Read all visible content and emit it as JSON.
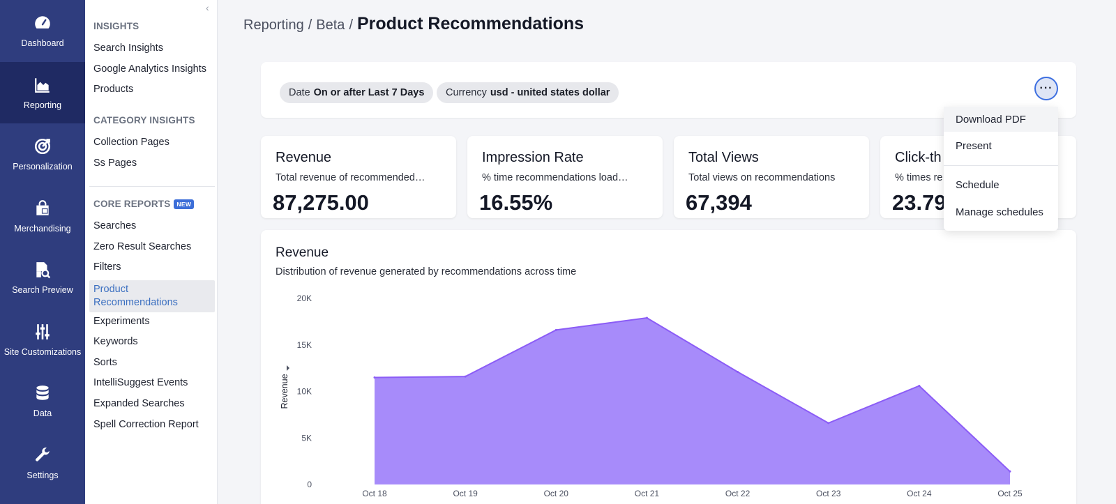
{
  "rail": [
    {
      "label": "Dashboard",
      "icon": "speedometer-icon",
      "active": false
    },
    {
      "label": "Reporting",
      "icon": "area-chart-icon",
      "active": true
    },
    {
      "label": "Personalization",
      "icon": "target-icon",
      "active": false
    },
    {
      "label": "Merchandising",
      "icon": "shopping-bag-icon",
      "active": false
    },
    {
      "label": "Search Preview",
      "icon": "document-search-icon",
      "active": false
    },
    {
      "label": "Site Customizations",
      "icon": "sliders-icon",
      "active": false
    },
    {
      "label": "Data",
      "icon": "database-icon",
      "active": false
    },
    {
      "label": "Settings",
      "icon": "wrench-icon",
      "active": false
    }
  ],
  "subnav": {
    "sections": [
      {
        "title": "INSIGHTS",
        "badge": "",
        "items": [
          "Search Insights",
          "Google Analytics Insights",
          "Products"
        ]
      },
      {
        "title": "CATEGORY INSIGHTS",
        "badge": "",
        "items": [
          "Collection Pages",
          "Ss Pages"
        ]
      },
      {
        "title": "CORE REPORTS",
        "badge": "NEW",
        "items": [
          "Searches",
          "Zero Result Searches",
          "Filters",
          "Product Recommendations",
          "Experiments",
          "Keywords",
          "Sorts",
          "IntelliSuggest Events",
          "Expanded Searches",
          "Spell Correction Report"
        ]
      }
    ],
    "active_item": "Product Recommendations"
  },
  "breadcrumb": {
    "parts": [
      "Reporting",
      "Beta"
    ],
    "separator": "/",
    "title": "Product Recommendations"
  },
  "filters": [
    {
      "label": "Date",
      "value": "On or after Last 7 Days"
    },
    {
      "label": "Currency",
      "value": "usd - united states dollar"
    }
  ],
  "more_button": {
    "label": "···"
  },
  "kpis": [
    {
      "title": "Revenue",
      "desc": "Total revenue of recommended…",
      "value": "87,275.00"
    },
    {
      "title": "Impression Rate",
      "desc": "% time recommendations load…",
      "value": "16.55%"
    },
    {
      "title": "Total Views",
      "desc": "Total views on recommendations",
      "value": "67,394"
    },
    {
      "title": "Click-th",
      "desc": "% times re",
      "value": "23.79"
    }
  ],
  "menu": {
    "items": [
      "Download PDF",
      "Present",
      "Schedule",
      "Manage schedules"
    ],
    "hovered": "Download PDF"
  },
  "chart": {
    "title": "Revenue",
    "subtitle": "Distribution of revenue generated by recommendations across time"
  },
  "chart_data": {
    "type": "area",
    "title": "Revenue",
    "subtitle": "Distribution of revenue generated by recommendations across time",
    "ylabel": "Revenue",
    "xlabel": "",
    "categories": [
      "Oct 18",
      "Oct 19",
      "Oct 20",
      "Oct 21",
      "Oct 22",
      "Oct 23",
      "Oct 24",
      "Oct 25"
    ],
    "values": [
      11500,
      11600,
      16600,
      17900,
      12100,
      6600,
      10600,
      1400
    ],
    "yticks": [
      "0",
      "5K",
      "10K",
      "15K",
      "20K"
    ],
    "ylim": [
      0,
      20000
    ],
    "color": "#a78bfa",
    "line_color": "#8b5cf6",
    "grid": false,
    "legend": "none"
  }
}
